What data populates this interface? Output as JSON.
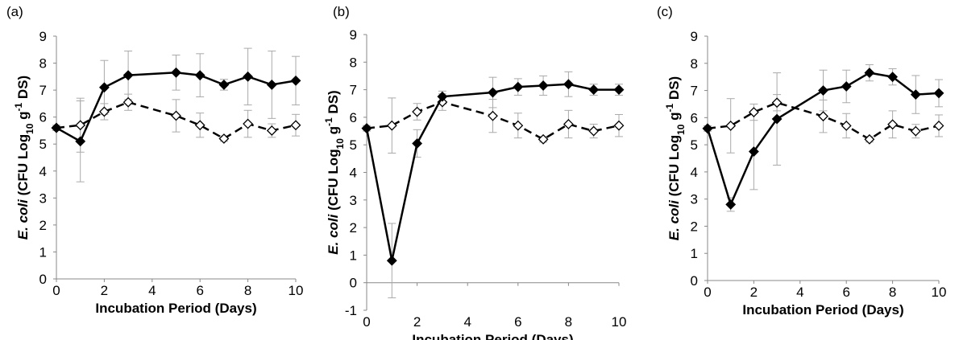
{
  "chart_data": [
    {
      "type": "line",
      "panel_label": "(a)",
      "xlabel": "Incubation Period (Days)",
      "ylabel": [
        "E. coli",
        " (CFU Log",
        "10",
        " g",
        "-1",
        " DS)"
      ],
      "x": [
        0,
        1,
        2,
        3,
        5,
        6,
        7,
        8,
        9,
        10
      ],
      "xlim": [
        0,
        10
      ],
      "xticks": [
        0,
        2,
        4,
        6,
        8,
        10
      ],
      "ylim": [
        0,
        9
      ],
      "yticks": [
        0,
        1,
        2,
        3,
        4,
        5,
        6,
        7,
        8,
        9
      ],
      "error_color": "#aaaaaa",
      "series": [
        {
          "color": "#000000",
          "dashed": false,
          "filled": true,
          "values": [
            5.6,
            5.1,
            7.1,
            7.55,
            7.65,
            7.55,
            7.2,
            7.5,
            7.2,
            7.35
          ],
          "errors": [
            0.1,
            1.5,
            1.0,
            0.9,
            0.65,
            0.8,
            0.2,
            1.05,
            1.25,
            0.9
          ]
        },
        {
          "color": "#000000",
          "dashed": true,
          "filled": false,
          "values": [
            5.6,
            5.7,
            6.2,
            6.55,
            6.05,
            5.7,
            5.2,
            5.75,
            5.5,
            5.7
          ],
          "errors": [
            0.05,
            1.0,
            0.3,
            0.3,
            0.6,
            0.45,
            0.1,
            0.5,
            0.25,
            0.4
          ]
        }
      ]
    },
    {
      "type": "line",
      "panel_label": "(b)",
      "xlabel": "Incubation Period (Days)",
      "ylabel": [
        "E. coli",
        " (CFU Log",
        "10",
        " g",
        "-1",
        " DS)"
      ],
      "x": [
        0,
        1,
        2,
        3,
        5,
        6,
        7,
        8,
        9,
        10
      ],
      "xlim": [
        0,
        10
      ],
      "xticks": [
        0,
        2,
        4,
        6,
        8,
        10
      ],
      "ylim": [
        -1,
        9
      ],
      "yticks": [
        -1,
        0,
        1,
        2,
        3,
        4,
        5,
        6,
        7,
        8,
        9
      ],
      "error_color": "#aaaaaa",
      "series": [
        {
          "color": "#000000",
          "dashed": false,
          "filled": true,
          "values": [
            5.6,
            0.8,
            5.05,
            6.75,
            6.9,
            7.1,
            7.15,
            7.2,
            7.0,
            7.0
          ],
          "errors": [
            0.1,
            1.35,
            0.5,
            0.2,
            0.55,
            0.3,
            0.35,
            0.45,
            0.2,
            0.2
          ]
        },
        {
          "color": "#000000",
          "dashed": true,
          "filled": false,
          "values": [
            5.6,
            5.7,
            6.2,
            6.55,
            6.05,
            5.7,
            5.2,
            5.75,
            5.5,
            5.7
          ],
          "errors": [
            0.05,
            1.0,
            0.3,
            0.3,
            0.6,
            0.45,
            0.1,
            0.5,
            0.25,
            0.4
          ]
        }
      ]
    },
    {
      "type": "line",
      "panel_label": "(c)",
      "xlabel": "Incubation Period (Days)",
      "ylabel": [
        "E. coli",
        " (CFU Log",
        "10",
        " g",
        "-1",
        " DS)"
      ],
      "x": [
        0,
        1,
        2,
        3,
        5,
        6,
        7,
        8,
        9,
        10
      ],
      "xlim": [
        0,
        10
      ],
      "xticks": [
        0,
        2,
        4,
        6,
        8,
        10
      ],
      "ylim": [
        0,
        9
      ],
      "yticks": [
        0,
        1,
        2,
        3,
        4,
        5,
        6,
        7,
        8,
        9
      ],
      "error_color": "#aaaaaa",
      "series": [
        {
          "color": "#000000",
          "dashed": false,
          "filled": true,
          "values": [
            5.6,
            2.8,
            4.75,
            5.95,
            7.0,
            7.15,
            7.65,
            7.5,
            6.85,
            6.9
          ],
          "errors": [
            0.1,
            0.25,
            1.4,
            1.7,
            0.75,
            0.6,
            0.3,
            0.3,
            0.7,
            0.5
          ]
        },
        {
          "color": "#000000",
          "dashed": true,
          "filled": false,
          "values": [
            5.6,
            5.7,
            6.2,
            6.55,
            6.05,
            5.7,
            5.2,
            5.75,
            5.5,
            5.7
          ],
          "errors": [
            0.05,
            1.0,
            0.3,
            0.3,
            0.6,
            0.45,
            0.1,
            0.5,
            0.25,
            0.4
          ]
        }
      ]
    }
  ]
}
